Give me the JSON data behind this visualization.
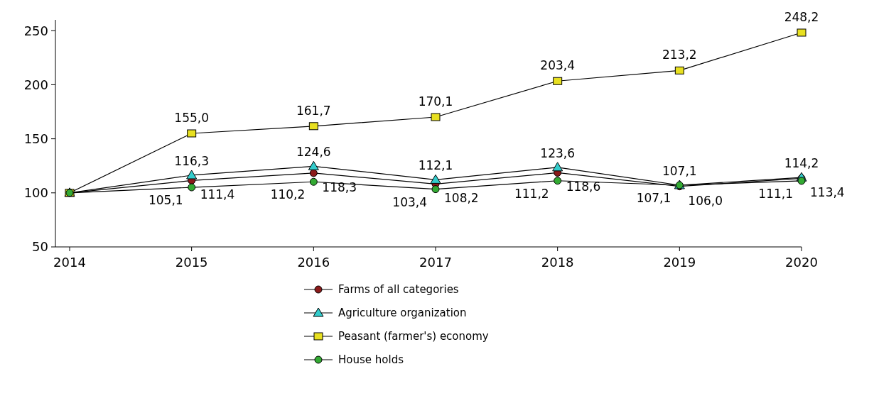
{
  "chart_data": {
    "type": "line",
    "categories": [
      "2014",
      "2015",
      "2016",
      "2017",
      "2018",
      "2019",
      "2020"
    ],
    "ylim": [
      50,
      260
    ],
    "yticks": [
      50,
      100,
      150,
      200,
      250
    ],
    "grid": false,
    "legend": "bottom",
    "series": [
      {
        "name": "Farms of all categories",
        "color": "#8b1a1a",
        "marker": "circle",
        "values": [
          100,
          111.4,
          118.3,
          108.2,
          118.6,
          106.0,
          113.4
        ],
        "value_labels": [
          null,
          "111,4",
          "118,3",
          "108,2",
          "118,6",
          "106,0",
          "113,4"
        ]
      },
      {
        "name": "Agriculture organization",
        "color": "#33cccc",
        "marker": "triangle",
        "values": [
          100,
          116.3,
          124.6,
          112.1,
          123.6,
          107.1,
          114.2
        ],
        "value_labels": [
          null,
          "116,3",
          "124,6",
          "112,1",
          "123,6",
          "107,1",
          "114,2"
        ]
      },
      {
        "name": "Peasant (farmer's) economy",
        "color": "#e8e020",
        "marker": "square",
        "values": [
          100,
          155.0,
          161.7,
          170.1,
          203.4,
          213.2,
          248.2
        ],
        "value_labels": [
          null,
          "155,0",
          "161,7",
          "170,1",
          "203,4",
          "213,2",
          "248,2"
        ]
      },
      {
        "name": "House holds",
        "color": "#33aa33",
        "marker": "circle",
        "values": [
          100,
          105.1,
          110.2,
          103.4,
          111.2,
          107.1,
          111.1
        ],
        "value_labels": [
          null,
          "105,1",
          "110,2",
          "103,4",
          "111,2",
          "107,1",
          "111,1"
        ]
      }
    ]
  }
}
